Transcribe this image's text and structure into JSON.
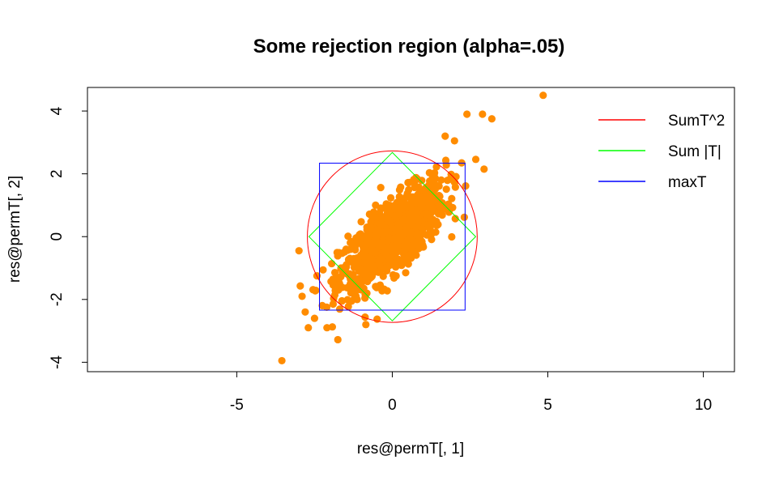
{
  "chart_data": {
    "type": "scatter",
    "title": "Some rejection region (alpha=.05)",
    "xlabel": "res@permT[, 1]",
    "ylabel": "res@permT[, 2]",
    "xlim": [
      -9.8,
      11
    ],
    "ylim": [
      -4.3,
      4.75
    ],
    "x_ticks": [
      -5,
      0,
      5,
      10
    ],
    "y_ticks": [
      -4,
      -2,
      0,
      2,
      4
    ],
    "grid": false,
    "point_color": "#FF8C00",
    "legend": {
      "placement": "top-right",
      "entries": [
        {
          "label": "SumT^2",
          "color": "#FF0000"
        },
        {
          "label": "Sum |T|",
          "color": "#00FF00"
        },
        {
          "label": "maxT",
          "color": "#0000FF"
        }
      ]
    },
    "regions": {
      "circle": {
        "center": [
          0,
          0
        ],
        "radius": 2.73,
        "color": "#FF0000"
      },
      "diamond": {
        "vertices": [
          [
            0,
            2.68
          ],
          [
            2.68,
            0
          ],
          [
            0,
            -2.68
          ],
          [
            -2.68,
            0
          ]
        ],
        "color": "#00FF00"
      },
      "square": {
        "x": [
          -2.34,
          2.34
        ],
        "y": [
          -2.34,
          2.34
        ],
        "color": "#0000FF"
      }
    },
    "notable_points": [
      {
        "x": 4.85,
        "y": 4.5
      },
      {
        "x": -3.55,
        "y": -3.95
      },
      {
        "x": 2.4,
        "y": 3.9
      },
      {
        "x": 2.9,
        "y": 3.9
      },
      {
        "x": 3.2,
        "y": 3.75
      },
      {
        "x": 2.95,
        "y": 2.15
      },
      {
        "x": -1.75,
        "y": -3.28
      },
      {
        "x": -2.7,
        "y": -2.9
      },
      {
        "x": -2.8,
        "y": -2.4
      },
      {
        "x": -2.9,
        "y": -1.9
      },
      {
        "x": -3.0,
        "y": -0.45
      },
      {
        "x": -2.5,
        "y": -2.6
      },
      {
        "x": -2.1,
        "y": -2.9
      },
      {
        "x": -0.85,
        "y": -2.8
      },
      {
        "x": 2.0,
        "y": 3.05
      },
      {
        "x": 1.7,
        "y": 3.2
      }
    ],
    "cloud": {
      "n": 1000,
      "mean": [
        0,
        0
      ],
      "sd": [
        0.85,
        0.85
      ],
      "correlation": 0.75
    }
  }
}
